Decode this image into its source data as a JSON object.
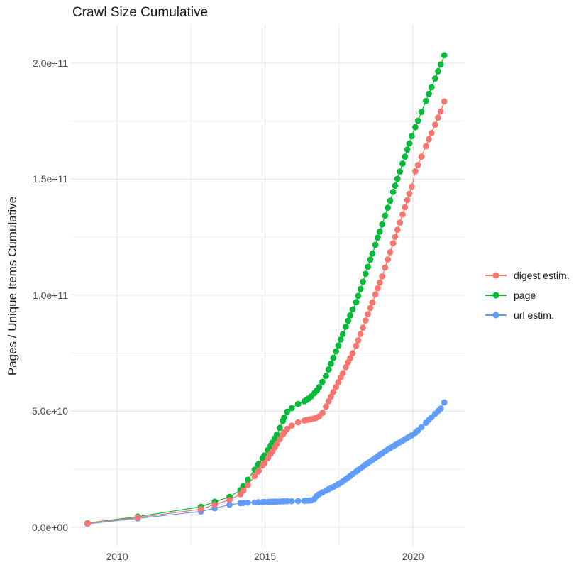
{
  "title": "Crawl Size Cumulative",
  "y_axis_title": "Pages / Unique Items Cumulative",
  "legend": [
    {
      "label": "digest estim.",
      "color": "#F8766D"
    },
    {
      "label": "page",
      "color": "#00BA38"
    },
    {
      "label": "url estim.",
      "color": "#619CFF"
    }
  ],
  "chart_data": {
    "type": "scatter",
    "title": "Crawl Size Cumulative",
    "xlabel": "",
    "ylabel": "Pages / Unique Items Cumulative",
    "legend_position": "right",
    "grid": true,
    "xlim": [
      2008.44,
      2021.75
    ],
    "ylim": [
      -8300000000.0,
      216500000000.0
    ],
    "x_ticks": [
      {
        "label": "2010",
        "value": 2010
      },
      {
        "label": "2015",
        "value": 2015
      },
      {
        "label": "2020",
        "value": 2020
      }
    ],
    "y_ticks": [
      {
        "label": "0.0e+00",
        "value": 0
      },
      {
        "label": "5.0e+10",
        "value": 50000000000.0
      },
      {
        "label": "1.0e+11",
        "value": 100000000000.0
      },
      {
        "label": "1.5e+11",
        "value": 150000000000.0
      },
      {
        "label": "2.0e+11",
        "value": 200000000000.0
      }
    ],
    "x_minor_gridlines": [
      2012.5,
      2017.5
    ],
    "y_minor_gridlines": [
      25000000000.0,
      75000000000.0,
      125000000000.0,
      175000000000.0
    ],
    "x": [
      2009.0,
      2010.7,
      2012.83,
      2013.3,
      2013.8,
      2014.17,
      2014.27,
      2014.42,
      2014.65,
      2014.77,
      2014.79,
      2014.92,
      2014.98,
      2015.1,
      2015.19,
      2015.25,
      2015.33,
      2015.4,
      2015.5,
      2015.6,
      2015.65,
      2015.75,
      2015.9,
      2016.12,
      2016.33,
      2016.4,
      2016.48,
      2016.56,
      2016.67,
      2016.75,
      2016.83,
      2016.94,
      2017.06,
      2017.15,
      2017.23,
      2017.31,
      2017.4,
      2017.48,
      2017.56,
      2017.63,
      2017.73,
      2017.81,
      2017.88,
      2017.96,
      2018.08,
      2018.15,
      2018.23,
      2018.31,
      2018.4,
      2018.48,
      2018.56,
      2018.63,
      2018.73,
      2018.81,
      2018.88,
      2018.96,
      2019.06,
      2019.15,
      2019.23,
      2019.33,
      2019.4,
      2019.48,
      2019.56,
      2019.65,
      2019.73,
      2019.81,
      2019.88,
      2019.96,
      2020.08,
      2020.17,
      2020.29,
      2020.44,
      2020.54,
      2020.63,
      2020.75,
      2020.85,
      2020.94,
      2021.06
    ],
    "series": [
      {
        "name": "url estim.",
        "color": "#619CFF",
        "values": [
          1500000000.0,
          3800000000.0,
          6800000000.0,
          8200000000.0,
          9700000000.0,
          10400000000.0,
          10500000000.0,
          10600000000.0,
          10700000000.0,
          10750000000.0,
          10800000000.0,
          10850000000.0,
          10900000000.0,
          10950000000.0,
          11000000000.0,
          11000000000.0,
          11050000000.0,
          11100000000.0,
          11100000000.0,
          11150000000.0,
          11200000000.0,
          11200000000.0,
          11250000000.0,
          11300000000.0,
          11400000000.0,
          11450000000.0,
          11500000000.0,
          11600000000.0,
          12200000000.0,
          13500000000.0,
          14200000000.0,
          15000000000.0,
          15800000000.0,
          16400000000.0,
          16900000000.0,
          17400000000.0,
          18000000000.0,
          18600000000.0,
          19200000000.0,
          19800000000.0,
          20700000000.0,
          21400000000.0,
          22100000000.0,
          22900000000.0,
          24000000000.0,
          24700000000.0,
          25400000000.0,
          26100000000.0,
          27000000000.0,
          27700000000.0,
          28400000000.0,
          29000000000.0,
          29900000000.0,
          30600000000.0,
          31200000000.0,
          31900000000.0,
          32800000000.0,
          33500000000.0,
          34100000000.0,
          34900000000.0,
          35400000000.0,
          36000000000.0,
          36600000000.0,
          37300000000.0,
          37900000000.0,
          38500000000.0,
          39000000000.0,
          39600000000.0,
          40700000000.0,
          41700000000.0,
          43100000000.0,
          45000000000.0,
          46300000000.0,
          47400000000.0,
          48900000000.0,
          50100000000.0,
          51200000000.0,
          53800000000.0
        ]
      },
      {
        "name": "page",
        "color": "#00BA38",
        "values": [
          1800000000.0,
          4600000000.0,
          8800000000.0,
          11000000000.0,
          13100000000.0,
          16000000000.0,
          17800000000.0,
          20500000000.0,
          24800000000.0,
          27000000000.0,
          27400000000.0,
          29800000000.0,
          30900000000.0,
          33300000000.0,
          35200000000.0,
          36500000000.0,
          38300000000.0,
          40000000000.0,
          42800000000.0,
          45800000000.0,
          47300000000.0,
          49800000000.0,
          51300000000.0,
          53100000000.0,
          54300000000.0,
          54800000000.0,
          55500000000.0,
          56400000000.0,
          57800000000.0,
          59000000000.0,
          60400000000.0,
          62600000000.0,
          65200000000.0,
          68000000000.0,
          70500000000.0,
          73000000000.0,
          75800000000.0,
          78300000000.0,
          80900000000.0,
          83200000000.0,
          86400000000.0,
          89000000000.0,
          91300000000.0,
          93900000000.0,
          97000000000.0,
          99700000000.0,
          102700000000.0,
          105800000000.0,
          109200000000.0,
          112200000000.0,
          115300000000.0,
          117900000000.0,
          121700000000.0,
          124800000000.0,
          127400000000.0,
          130500000000.0,
          134300000000.0,
          137700000000.0,
          140700000000.0,
          144500000000.0,
          147200000000.0,
          150200000000.0,
          153300000000.0,
          156700000000.0,
          159700000000.0,
          162800000000.0,
          165400000000.0,
          168500000000.0,
          172400000000.0,
          175200000000.0,
          179000000000.0,
          183700000000.0,
          186800000000.0,
          189600000000.0,
          193400000000.0,
          196500000000.0,
          199400000000.0,
          203400000000.0
        ]
      },
      {
        "name": "digest estim.",
        "color": "#F8766D",
        "values": [
          1700000000.0,
          4200000000.0,
          7800000000.0,
          9800000000.0,
          11800000000.0,
          14200000000.0,
          15800000000.0,
          18200000000.0,
          22000000000.0,
          24000000000.0,
          24400000000.0,
          26600000000.0,
          27600000000.0,
          29800000000.0,
          31600000000.0,
          32800000000.0,
          34400000000.0,
          35800000000.0,
          37900000000.0,
          39900000000.0,
          40900000000.0,
          42400000000.0,
          43800000000.0,
          45200000000.0,
          46000000000.0,
          46200000000.0,
          46400000000.0,
          46600000000.0,
          46900000000.0,
          47200000000.0,
          47800000000.0,
          49300000000.0,
          52000000000.0,
          54300000000.0,
          56300000000.0,
          58300000000.0,
          60500000000.0,
          62500000000.0,
          64600000000.0,
          66400000000.0,
          69000000000.0,
          71100000000.0,
          72900000000.0,
          75000000000.0,
          78200000000.0,
          80600000000.0,
          83300000000.0,
          86000000000.0,
          89100000000.0,
          91800000000.0,
          94500000000.0,
          96900000000.0,
          100300000000.0,
          103000000000.0,
          105400000000.0,
          108100000000.0,
          111900000000.0,
          115400000000.0,
          118500000000.0,
          122400000000.0,
          125100000000.0,
          128200000000.0,
          131300000000.0,
          134800000000.0,
          137900000000.0,
          141000000000.0,
          143700000000.0,
          146800000000.0,
          153400000000.0,
          156100000000.0,
          159700000000.0,
          164200000000.0,
          167200000000.0,
          169900000000.0,
          173500000000.0,
          176500000000.0,
          179200000000.0,
          183500000000.0
        ]
      }
    ]
  },
  "style": {
    "major_grid_color": "#e3e3e3",
    "minor_grid_color": "#f0f0f0",
    "point_radius": 4.4,
    "line_width": 1.2
  }
}
